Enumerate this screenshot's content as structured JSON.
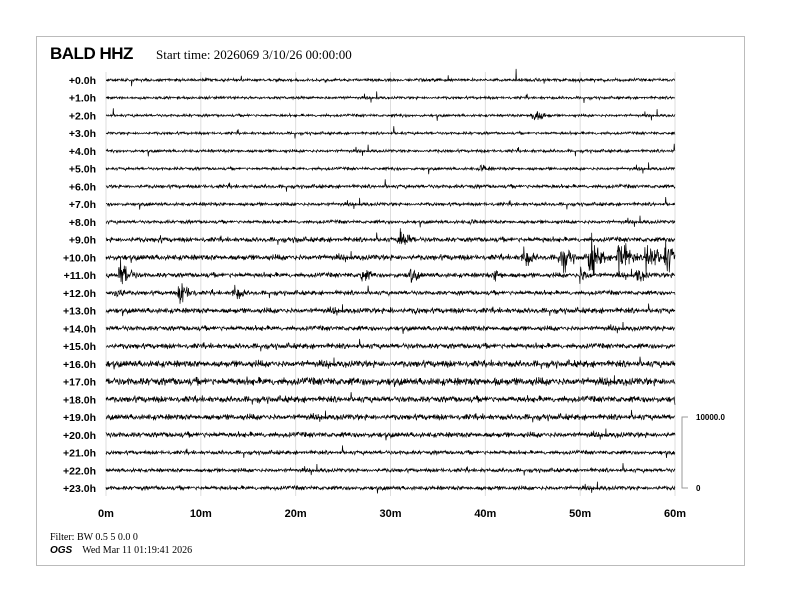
{
  "header": {
    "station": "BALD HHZ",
    "start_time": "Start time: 2026069  3/10/26 00:00:00"
  },
  "footer": {
    "filter": "Filter: BW 0.5 5 0.0 0",
    "agency": "OGS",
    "generated": "Wed Mar 11 01:19:41 2026"
  },
  "chart_data": {
    "type": "line",
    "title": "BALD HHZ",
    "row_labels": [
      "+0.0h",
      "+1.0h",
      "+2.0h",
      "+3.0h",
      "+4.0h",
      "+5.0h",
      "+6.0h",
      "+7.0h",
      "+8.0h",
      "+9.0h",
      "+10.0h",
      "+11.0h",
      "+12.0h",
      "+13.0h",
      "+14.0h",
      "+15.0h",
      "+16.0h",
      "+17.0h",
      "+18.0h",
      "+19.0h",
      "+20.0h",
      "+21.0h",
      "+22.0h",
      "+23.0h"
    ],
    "x_ticks": [
      "0m",
      "10m",
      "20m",
      "30m",
      "40m",
      "50m",
      "60m"
    ],
    "xlim": [
      0,
      60
    ],
    "grid": true,
    "trace_color": "#000000",
    "grid_color": "#dddddd",
    "scale": {
      "top_label": "10000.0",
      "bottom_label": "0",
      "top_value": 10000,
      "bottom_value": 0
    },
    "row_noise_counts": [
      120,
      110,
      110,
      110,
      120,
      120,
      150,
      140,
      140,
      200,
      230,
      200,
      180,
      220,
      200,
      220,
      280,
      320,
      260,
      240,
      220,
      160,
      160,
      170
    ],
    "events": [
      {
        "row": 2,
        "minute": 45,
        "amplitude": 900
      },
      {
        "row": 5,
        "minute": 39.5,
        "amplitude": 500
      },
      {
        "row": 8,
        "minute": 38.5,
        "amplitude": 350
      },
      {
        "row": 9,
        "minute": 5.5,
        "amplitude": 400
      },
      {
        "row": 9,
        "minute": 20,
        "amplitude": 400
      },
      {
        "row": 9,
        "minute": 31,
        "amplitude": 1200
      },
      {
        "row": 9,
        "minute": 46,
        "amplitude": 300
      },
      {
        "row": 10,
        "minute": 44,
        "amplitude": 1200
      },
      {
        "row": 10,
        "minute": 48,
        "amplitude": 1500
      },
      {
        "row": 10,
        "minute": 51,
        "amplitude": 2200
      },
      {
        "row": 10,
        "minute": 54,
        "amplitude": 2500
      },
      {
        "row": 10,
        "minute": 57,
        "amplitude": 2300
      },
      {
        "row": 10,
        "minute": 59,
        "amplitude": 1800
      },
      {
        "row": 11,
        "minute": 1.5,
        "amplitude": 1600
      },
      {
        "row": 11,
        "minute": 27,
        "amplitude": 800
      },
      {
        "row": 11,
        "minute": 32,
        "amplitude": 900
      },
      {
        "row": 11,
        "minute": 41,
        "amplitude": 700
      },
      {
        "row": 11,
        "minute": 50,
        "amplitude": 900
      },
      {
        "row": 11,
        "minute": 56,
        "amplitude": 800
      },
      {
        "row": 12,
        "minute": 1,
        "amplitude": 800
      },
      {
        "row": 12,
        "minute": 7.8,
        "amplitude": 1300
      },
      {
        "row": 12,
        "minute": 13.5,
        "amplitude": 900
      },
      {
        "row": 13,
        "minute": 24,
        "amplitude": 350
      },
      {
        "row": 13,
        "minute": 30,
        "amplitude": 400
      },
      {
        "row": 13,
        "minute": 32.5,
        "amplitude": 450
      },
      {
        "row": 14,
        "minute": 4,
        "amplitude": 250
      },
      {
        "row": 14,
        "minute": 38.5,
        "amplitude": 350
      },
      {
        "row": 17,
        "minute": 41,
        "amplitude": 500
      }
    ]
  }
}
